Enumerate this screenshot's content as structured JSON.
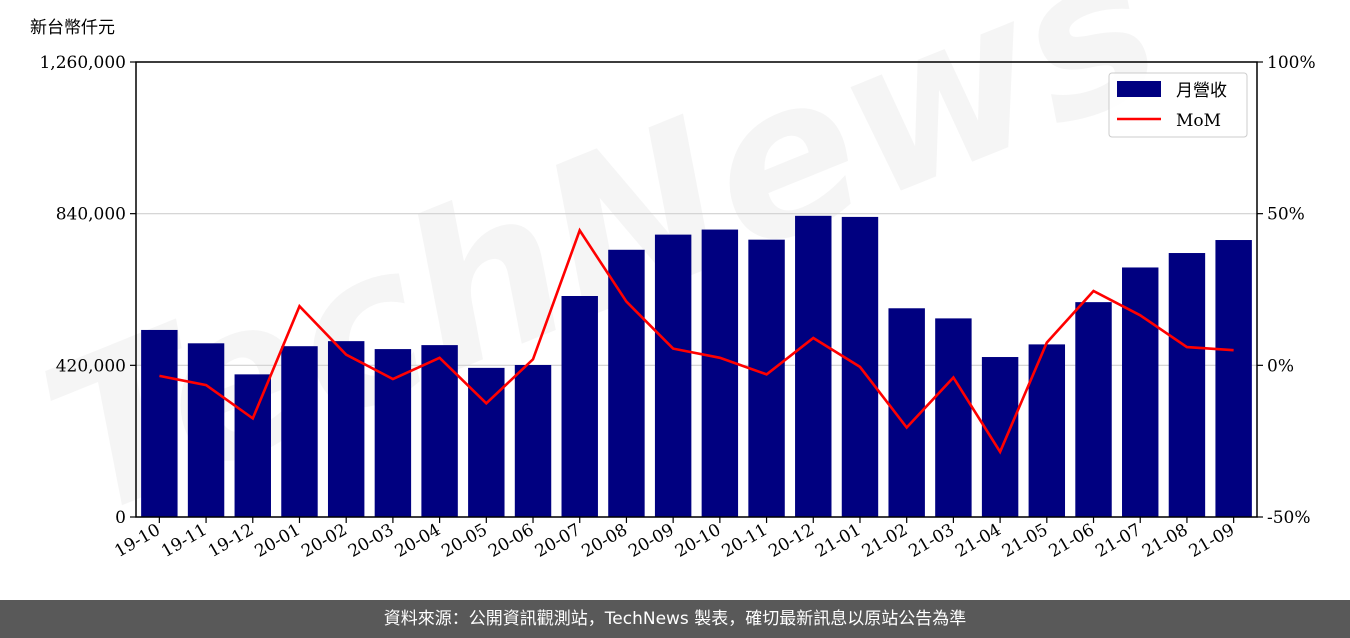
{
  "chart_data": {
    "type": "bar",
    "unit_label": "新台幣仟元",
    "categories": [
      "19-10",
      "19-11",
      "19-12",
      "20-01",
      "20-02",
      "20-03",
      "20-04",
      "20-05",
      "20-06",
      "20-07",
      "20-08",
      "20-09",
      "20-10",
      "20-11",
      "20-12",
      "21-01",
      "21-02",
      "21-03",
      "21-04",
      "21-05",
      "21-06",
      "21-07",
      "21-08",
      "21-09"
    ],
    "series": [
      {
        "name": "月營收",
        "type": "bar",
        "axis": "left",
        "color": "#000080",
        "values": [
          518000,
          481000,
          395000,
          473000,
          487000,
          465000,
          476000,
          413000,
          421000,
          612000,
          740000,
          782000,
          796000,
          768000,
          834000,
          831000,
          578000,
          550000,
          443000,
          478000,
          595000,
          691000,
          731000,
          767000
        ]
      },
      {
        "name": "MoM",
        "type": "line",
        "axis": "right",
        "color": "#ff0000",
        "values": [
          -3.5,
          -6.5,
          -17.5,
          19.5,
          3.5,
          -4.5,
          2.5,
          -12.5,
          2.0,
          44.5,
          21.0,
          5.5,
          2.5,
          -3.0,
          9.0,
          -0.5,
          -20.5,
          -4.0,
          -28.5,
          7.5,
          24.5,
          16.5,
          6.0,
          5.0
        ]
      }
    ],
    "y_left": {
      "min": 0,
      "max": 1260000,
      "ticks": [
        "0",
        "420,000",
        "840,000",
        "1,260,000"
      ],
      "tick_values": [
        0,
        420000,
        840000,
        1260000
      ]
    },
    "y_right": {
      "min": -50,
      "max": 100,
      "ticks": [
        "-50%",
        "0%",
        "50%",
        "100%"
      ],
      "tick_values": [
        -50,
        0,
        50,
        100
      ]
    },
    "grid": "horizontal",
    "legend_position": "top-right"
  },
  "watermark": "TechNews",
  "footer": {
    "text": "資料來源：公開資訊觀測站，TechNews 製表，確切最新訊息以原站公告為準"
  }
}
